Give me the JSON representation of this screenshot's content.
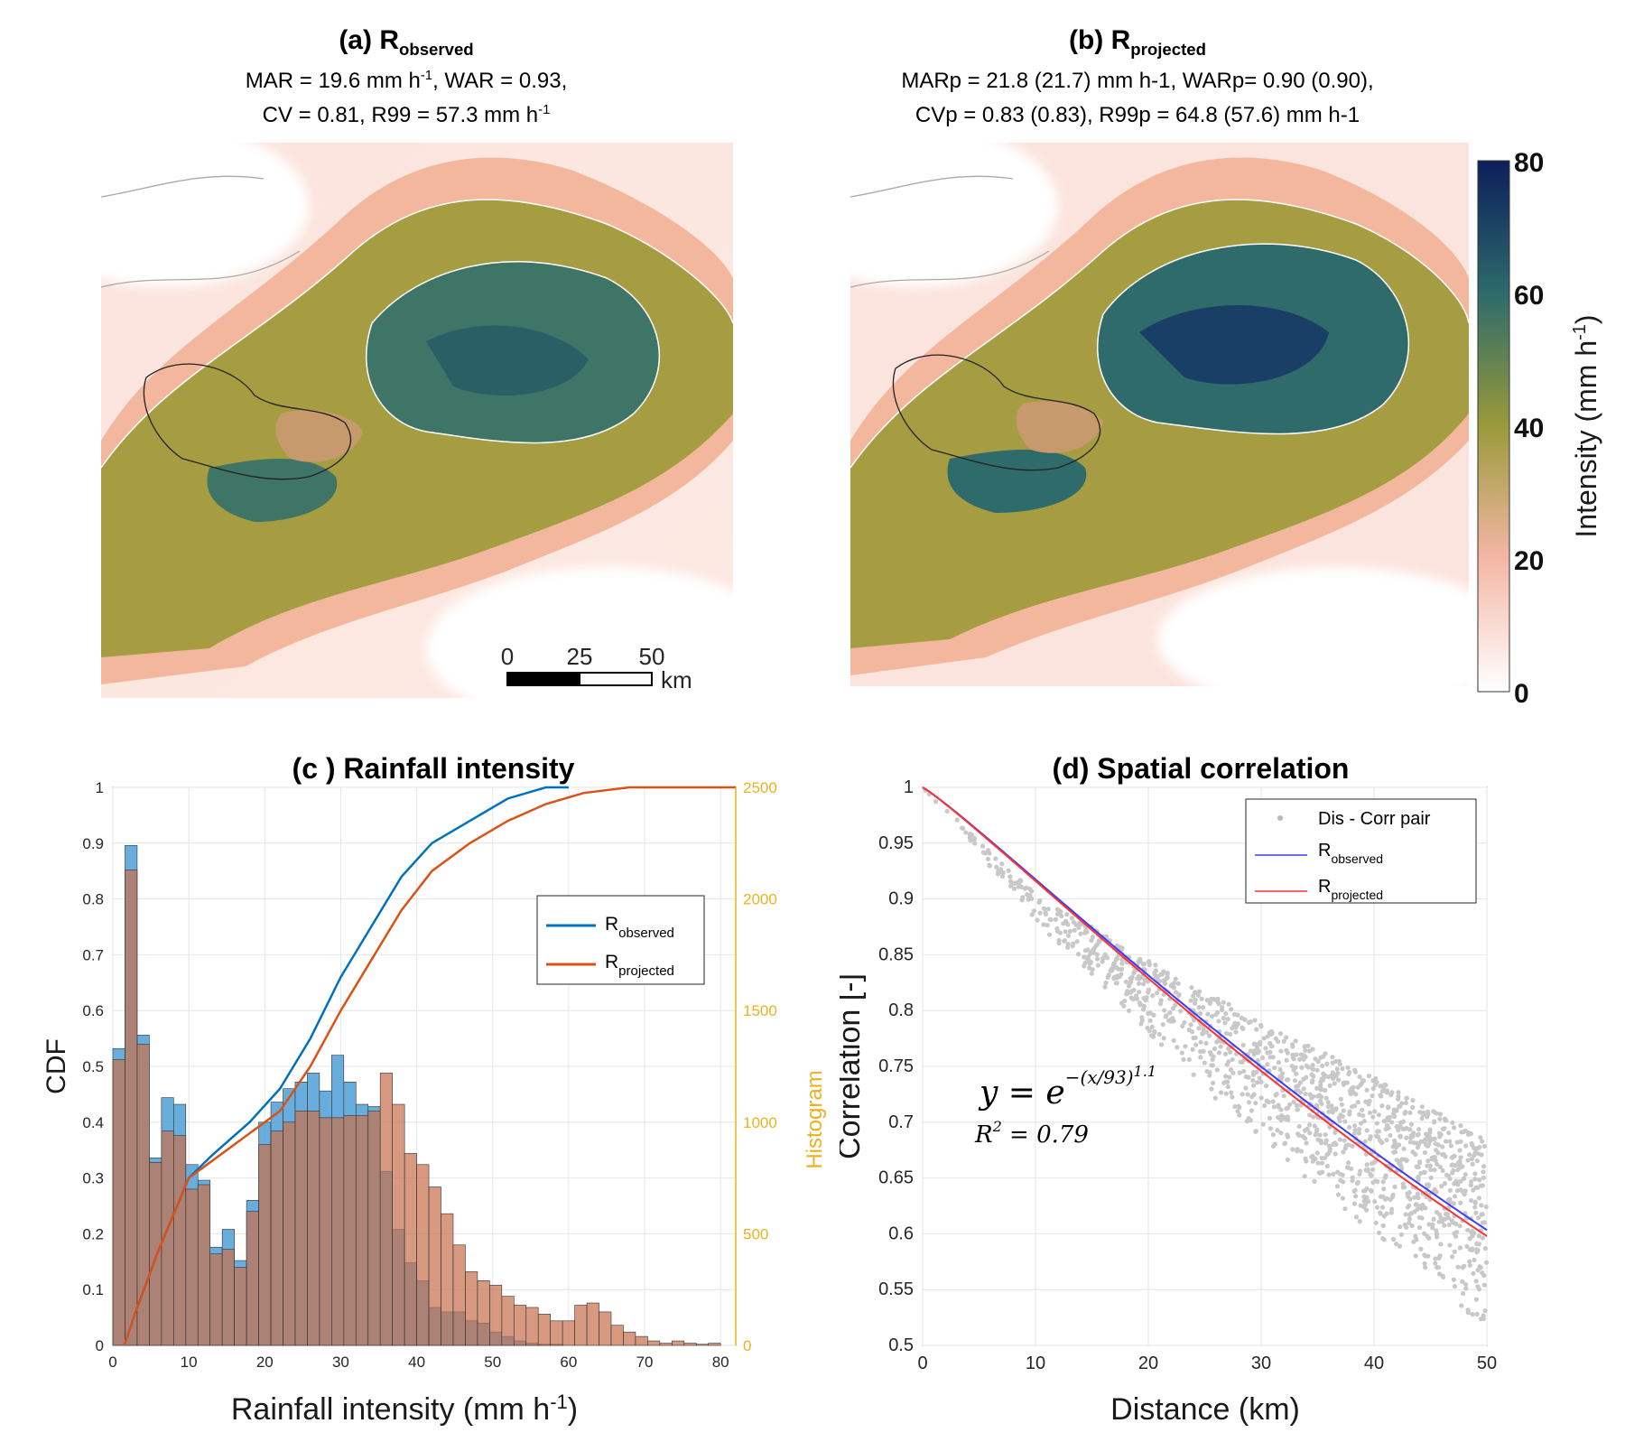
{
  "panel_a": {
    "title_prefix": "(a) R",
    "title_sub": "observed",
    "line1": "MAR = 19.6 mm h",
    "line1_sup": "-1",
    "line1_tail": ",  WAR = 0.93,",
    "line2": "CV = 0.81,  R99 = 57.3 mm h",
    "line2_sup": "-1"
  },
  "panel_b": {
    "title_prefix": "(b) R",
    "title_sub": "projected",
    "line1": "MARp = 21.8 (21.7) mm h-1, WARp= 0.90 (0.90),",
    "line2": "CVp = 0.83 (0.83), R99p = 64.8 (57.6) mm h-1"
  },
  "scale_bar": {
    "labels": [
      "0",
      "25",
      "50"
    ],
    "unit": "km"
  },
  "colorbar": {
    "label": "Intensity (mm h",
    "label_sup": "-1",
    "label_tail": ")",
    "ticks": [
      "0",
      "20",
      "40",
      "60",
      "80"
    ],
    "colors": [
      "#ffffff",
      "#f4b7a6",
      "#9a9a3a",
      "#2e6b6b",
      "#0d1f5c"
    ]
  },
  "chart_data": [
    {
      "type": "bar",
      "title": "(c ) Rainfall intensity",
      "xlabel": "Rainfall intensity (mm h-1)",
      "ylabel": "CDF",
      "y2label": "Histogram",
      "xlim": [
        0,
        82
      ],
      "ylim": [
        0,
        1
      ],
      "y2lim": [
        0,
        2500
      ],
      "xticks": [
        "0",
        "10",
        "20",
        "30",
        "40",
        "50",
        "60",
        "70",
        "80"
      ],
      "yticks": [
        "0",
        "0.1",
        "0.2",
        "0.3",
        "0.4",
        "0.5",
        "0.6",
        "0.7",
        "0.8",
        "0.9",
        "1"
      ],
      "y2ticks": [
        "0",
        "500",
        "1000",
        "1500",
        "2000",
        "2500"
      ],
      "bin_width": 1.6,
      "series": [
        {
          "name": "Robserved",
          "color": "#0072bd",
          "hist": [
            1330,
            2240,
            1390,
            840,
            1110,
            1080,
            810,
            740,
            440,
            520,
            380,
            650,
            1000,
            1090,
            1150,
            1180,
            1220,
            1140,
            1300,
            1180,
            1080,
            1070,
            780,
            520,
            370,
            290,
            170,
            150,
            150,
            110,
            100,
            60,
            40,
            20,
            10,
            5,
            5,
            0,
            0,
            0,
            0,
            0,
            0,
            0,
            0,
            0,
            0,
            0,
            0,
            0
          ]
        },
        {
          "name": "Rprojected",
          "color": "#d95319",
          "hist": [
            1280,
            2130,
            1350,
            820,
            960,
            940,
            700,
            720,
            410,
            430,
            350,
            600,
            900,
            960,
            1000,
            1050,
            1050,
            1020,
            1020,
            1030,
            1030,
            1050,
            1220,
            1080,
            860,
            810,
            710,
            590,
            450,
            330,
            290,
            270,
            220,
            180,
            170,
            140,
            110,
            110,
            180,
            190,
            150,
            90,
            60,
            40,
            20,
            10,
            20,
            10,
            5,
            10
          ]
        }
      ],
      "cdf": [
        {
          "name": "Robserved",
          "x": [
            1.5,
            3,
            6,
            10,
            13,
            18,
            22,
            26,
            30,
            34,
            38,
            42,
            47,
            52,
            57,
            60
          ],
          "y": [
            0,
            0.06,
            0.17,
            0.3,
            0.34,
            0.4,
            0.46,
            0.55,
            0.66,
            0.75,
            0.84,
            0.9,
            0.94,
            0.98,
            1.0,
            1.0
          ]
        },
        {
          "name": "Rprojected",
          "x": [
            1.5,
            3,
            6,
            10,
            13,
            18,
            22,
            26,
            30,
            34,
            38,
            42,
            47,
            52,
            57,
            62,
            68,
            75,
            82
          ],
          "y": [
            0,
            0.06,
            0.17,
            0.3,
            0.33,
            0.38,
            0.42,
            0.5,
            0.6,
            0.69,
            0.78,
            0.85,
            0.9,
            0.94,
            0.97,
            0.99,
            1.0,
            1.0,
            1.0
          ]
        }
      ],
      "legend": {
        "position": "top-right"
      }
    },
    {
      "type": "scatter",
      "title": "(d) Spatial correlation",
      "xlabel": "Distance (km)",
      "ylabel": "Correlation [-]",
      "xlim": [
        0,
        50
      ],
      "ylim": [
        0.5,
        1
      ],
      "xticks": [
        "0",
        "10",
        "20",
        "30",
        "40",
        "50"
      ],
      "yticks": [
        "0.5",
        "0.55",
        "0.6",
        "0.65",
        "0.7",
        "0.75",
        "0.8",
        "0.85",
        "0.9",
        "0.95",
        "1"
      ],
      "scatter": {
        "name": "Dis - Corr pair",
        "color": "#c8c8c8",
        "upper": [
          [
            0,
            1
          ],
          [
            10,
            0.905
          ],
          [
            20,
            0.845
          ],
          [
            30,
            0.79
          ],
          [
            40,
            0.74
          ],
          [
            50,
            0.685
          ]
        ],
        "lower": [
          [
            0,
            1
          ],
          [
            10,
            0.88
          ],
          [
            20,
            0.78
          ],
          [
            30,
            0.68
          ],
          [
            40,
            0.6
          ],
          [
            50,
            0.515
          ]
        ]
      },
      "fits": [
        {
          "name": "Robserved",
          "color": "#3b3bff",
          "scale": 93,
          "shape": 1.1
        },
        {
          "name": "Rprojected",
          "color": "#ff3030",
          "scale": 91.5,
          "shape": 1.1
        }
      ],
      "equation": "y = e-(x/93)^1.1",
      "r2": "R2 = 0.79",
      "legend": {
        "position": "top-right"
      }
    }
  ]
}
